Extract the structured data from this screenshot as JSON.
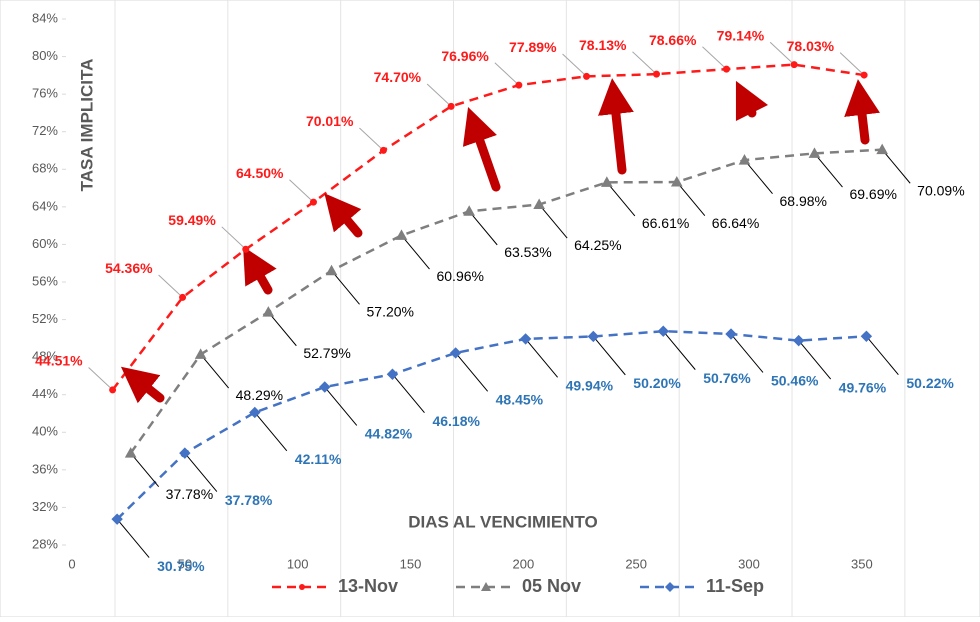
{
  "chart_data": {
    "type": "line",
    "x_label": "DIAS AL VENCIMIENTO",
    "y_label": "TASA IMPLICITA",
    "xlim": [
      0,
      370
    ],
    "ylim": [
      28,
      84
    ],
    "xticks": [
      0,
      50,
      100,
      150,
      200,
      250,
      300,
      350
    ],
    "yticks": [
      {
        "value": 28,
        "label": "28%"
      },
      {
        "value": 32,
        "label": "32%"
      },
      {
        "value": 36,
        "label": "36%"
      },
      {
        "value": 40,
        "label": "40%"
      },
      {
        "value": 44,
        "label": "44%"
      },
      {
        "value": 48,
        "label": "48%"
      },
      {
        "value": 52,
        "label": "52%"
      },
      {
        "value": 56,
        "label": "56%"
      },
      {
        "value": 60,
        "label": "60%"
      },
      {
        "value": 64,
        "label": "64%"
      },
      {
        "value": 68,
        "label": "68%"
      },
      {
        "value": 72,
        "label": "72%"
      },
      {
        "value": 76,
        "label": "76%"
      },
      {
        "value": 80,
        "label": "80%"
      },
      {
        "value": 84,
        "label": "84%"
      }
    ],
    "grid": "x",
    "legend": "bottom",
    "series": [
      {
        "name": "13-Nov",
        "color": "#ff1a1a",
        "marker": "circle",
        "label_color": "#ff1a1a",
        "x": [
          18,
          49,
          77,
          107,
          138,
          168,
          198,
          228,
          259,
          290,
          320,
          351
        ],
        "values": [
          44.51,
          54.36,
          59.49,
          64.5,
          70.01,
          74.7,
          76.96,
          77.89,
          78.13,
          78.66,
          79.14,
          78.03
        ],
        "value_labels": [
          "44.51%",
          "54.36%",
          "59.49%",
          "64.50%",
          "70.01%",
          "74.70%",
          "76.96%",
          "77.89%",
          "78.13%",
          "78.66%",
          "79.14%",
          "78.03%"
        ]
      },
      {
        "name": "05 Nov",
        "color": "#7f7f7f",
        "marker": "triangle",
        "label_color": "#000000",
        "x": [
          26,
          57,
          87,
          115,
          146,
          176,
          207,
          237,
          268,
          298,
          329,
          359
        ],
        "values": [
          37.78,
          48.29,
          52.79,
          57.2,
          60.96,
          63.53,
          64.25,
          66.61,
          66.64,
          68.98,
          69.69,
          70.09
        ],
        "value_labels": [
          "37.78%",
          "48.29%",
          "52.79%",
          "57.20%",
          "60.96%",
          "63.53%",
          "64.25%",
          "66.61%",
          "66.64%",
          "68.98%",
          "69.69%",
          "70.09%"
        ]
      },
      {
        "name": "11-Sep",
        "color": "#4472c4",
        "marker": "diamond",
        "label_color": "#2e75b6",
        "x": [
          20,
          50,
          81,
          112,
          142,
          170,
          201,
          231,
          262,
          292,
          322,
          352
        ],
        "values": [
          30.75,
          37.78,
          42.11,
          44.82,
          46.18,
          48.45,
          49.94,
          50.2,
          50.76,
          50.46,
          49.76,
          50.22
        ],
        "value_labels": [
          "30.75%",
          "37.78%",
          "42.11%",
          "44.82%",
          "46.18%",
          "48.45%",
          "49.94%",
          "50.20%",
          "50.76%",
          "50.46%",
          "49.76%",
          "50.22%"
        ]
      }
    ]
  }
}
